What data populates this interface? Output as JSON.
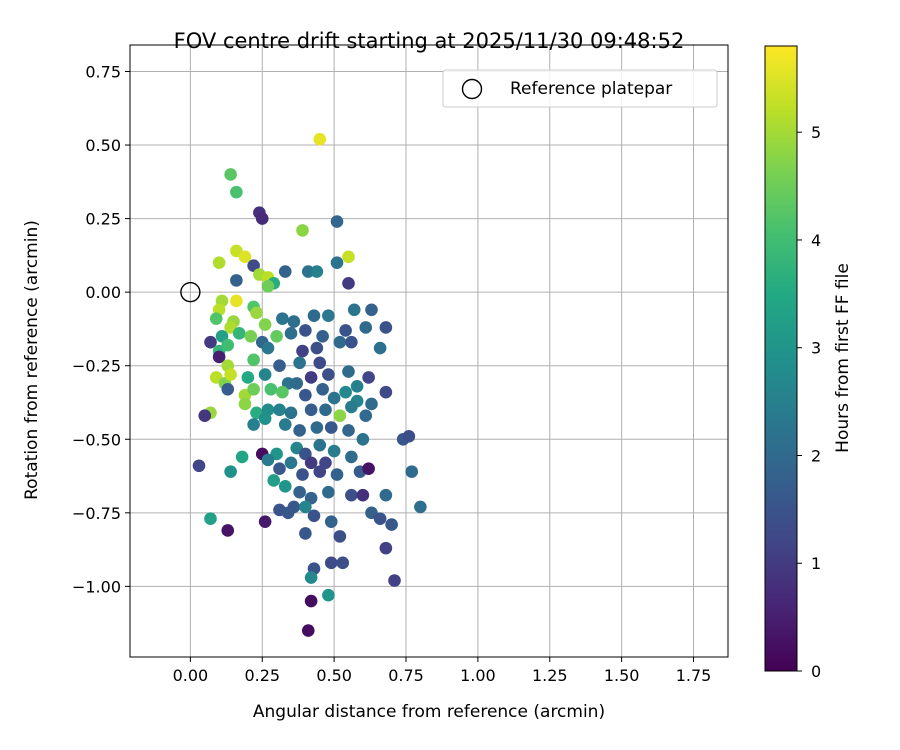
{
  "chart_data": {
    "type": "scatter",
    "title": "FOV centre drift starting at 2025/11/30 09:48:52",
    "xlabel": "Angular distance from reference (arcmin)",
    "ylabel": "Rotation from reference (arcmin)",
    "xlim": [
      -0.21,
      1.87
    ],
    "ylim": [
      -1.24,
      0.84
    ],
    "xticks": [
      0,
      0.25,
      0.5,
      0.75,
      1.0,
      1.25,
      1.5,
      1.75
    ],
    "xtick_labels": [
      "0.00",
      "0.25",
      "0.50",
      "0.75",
      "1.00",
      "1.25",
      "1.50",
      "1.75"
    ],
    "yticks": [
      -1.0,
      -0.75,
      -0.5,
      -0.25,
      0,
      0.25,
      0.5,
      0.75
    ],
    "ytick_labels": [
      "−1.00",
      "−0.75",
      "−0.50",
      "−0.25",
      "0.00",
      "0.25",
      "0.50",
      "0.75"
    ],
    "grid": true,
    "legend": {
      "position": "top-right",
      "entries": [
        "Reference platepar"
      ]
    },
    "reference_point": {
      "x": 0,
      "y": 0,
      "label": "Reference platepar"
    },
    "colorbar": {
      "label": "Hours from first FF file",
      "colormap": "viridis",
      "range": [
        0,
        5.8
      ],
      "ticks": [
        0,
        1,
        2,
        3,
        4,
        5
      ],
      "tick_labels": [
        "0",
        "1",
        "2",
        "3",
        "4",
        "5"
      ]
    },
    "points": [
      [
        0.45,
        0.52,
        5.6
      ],
      [
        0.14,
        0.4,
        4.3
      ],
      [
        0.16,
        0.34,
        4.1
      ],
      [
        0.24,
        0.27,
        0.8
      ],
      [
        0.25,
        0.25,
        0.7
      ],
      [
        0.39,
        0.21,
        4.8
      ],
      [
        0.51,
        0.24,
        1.9
      ],
      [
        0.16,
        0.14,
        5.3
      ],
      [
        0.19,
        0.12,
        5.5
      ],
      [
        0.1,
        0.1,
        5.1
      ],
      [
        0.55,
        0.12,
        5.3
      ],
      [
        0.22,
        0.09,
        1.3
      ],
      [
        0.51,
        0.1,
        2.2
      ],
      [
        0.33,
        0.07,
        1.8
      ],
      [
        0.41,
        0.07,
        2.2
      ],
      [
        0.44,
        0.07,
        2.5
      ],
      [
        0.24,
        0.06,
        5.0
      ],
      [
        0.27,
        0.05,
        5.2
      ],
      [
        0.29,
        0.03,
        3.6
      ],
      [
        0.16,
        0.04,
        1.8
      ],
      [
        0.27,
        0.02,
        4.5
      ],
      [
        0.55,
        0.03,
        1.0
      ],
      [
        0.11,
        -0.03,
        5.0
      ],
      [
        0.16,
        -0.03,
        5.6
      ],
      [
        0.1,
        -0.06,
        5.2
      ],
      [
        0.22,
        -0.05,
        4.2
      ],
      [
        0.23,
        -0.07,
        4.9
      ],
      [
        0.09,
        -0.09,
        4.2
      ],
      [
        0.15,
        -0.1,
        4.9
      ],
      [
        0.14,
        -0.12,
        5.1
      ],
      [
        0.26,
        -0.11,
        4.7
      ],
      [
        0.32,
        -0.09,
        2.2
      ],
      [
        0.36,
        -0.1,
        2.1
      ],
      [
        0.43,
        -0.08,
        2.0
      ],
      [
        0.48,
        -0.08,
        2.3
      ],
      [
        0.57,
        -0.06,
        2.2
      ],
      [
        0.63,
        -0.06,
        1.8
      ],
      [
        0.11,
        -0.15,
        3.3
      ],
      [
        0.17,
        -0.14,
        3.8
      ],
      [
        0.21,
        -0.15,
        4.6
      ],
      [
        0.3,
        -0.15,
        4.4
      ],
      [
        0.35,
        -0.14,
        2.1
      ],
      [
        0.4,
        -0.13,
        1.5
      ],
      [
        0.46,
        -0.15,
        1.8
      ],
      [
        0.54,
        -0.13,
        1.5
      ],
      [
        0.61,
        -0.12,
        2.0
      ],
      [
        0.68,
        -0.12,
        1.5
      ],
      [
        0.07,
        -0.17,
        1.0
      ],
      [
        0.1,
        -0.2,
        3.8
      ],
      [
        0.13,
        -0.18,
        4.0
      ],
      [
        0.25,
        -0.17,
        1.9
      ],
      [
        0.27,
        -0.19,
        2.3
      ],
      [
        0.39,
        -0.2,
        1.1
      ],
      [
        0.44,
        -0.19,
        1.4
      ],
      [
        0.52,
        -0.17,
        2.0
      ],
      [
        0.56,
        -0.17,
        1.5
      ],
      [
        0.66,
        -0.19,
        2.1
      ],
      [
        0.1,
        -0.22,
        0.5
      ],
      [
        0.13,
        -0.25,
        5.0
      ],
      [
        0.22,
        -0.23,
        4.2
      ],
      [
        0.31,
        -0.25,
        1.7
      ],
      [
        0.38,
        -0.24,
        2.2
      ],
      [
        0.45,
        -0.24,
        1.3
      ],
      [
        0.55,
        -0.27,
        2.0
      ],
      [
        0.62,
        -0.29,
        1.2
      ],
      [
        0.09,
        -0.29,
        5.2
      ],
      [
        0.12,
        -0.31,
        4.7
      ],
      [
        0.14,
        -0.28,
        5.3
      ],
      [
        0.2,
        -0.29,
        3.5
      ],
      [
        0.26,
        -0.28,
        2.6
      ],
      [
        0.34,
        -0.31,
        2.2
      ],
      [
        0.42,
        -0.29,
        1.0
      ],
      [
        0.48,
        -0.28,
        1.4
      ],
      [
        0.58,
        -0.32,
        2.5
      ],
      [
        0.13,
        -0.33,
        1.7
      ],
      [
        0.19,
        -0.35,
        5.0
      ],
      [
        0.22,
        -0.33,
        4.5
      ],
      [
        0.28,
        -0.33,
        4.1
      ],
      [
        0.32,
        -0.34,
        4.3
      ],
      [
        0.37,
        -0.31,
        2.0
      ],
      [
        0.4,
        -0.35,
        1.6
      ],
      [
        0.46,
        -0.33,
        1.8
      ],
      [
        0.5,
        -0.36,
        2.2
      ],
      [
        0.54,
        -0.34,
        2.7
      ],
      [
        0.58,
        -0.37,
        2.6
      ],
      [
        0.63,
        -0.38,
        2.0
      ],
      [
        0.68,
        -0.34,
        1.3
      ],
      [
        0.07,
        -0.41,
        4.9
      ],
      [
        0.05,
        -0.42,
        0.9
      ],
      [
        0.19,
        -0.38,
        4.8
      ],
      [
        0.23,
        -0.41,
        3.6
      ],
      [
        0.27,
        -0.4,
        2.8
      ],
      [
        0.31,
        -0.4,
        2.5
      ],
      [
        0.35,
        -0.41,
        2.2
      ],
      [
        0.42,
        -0.4,
        1.7
      ],
      [
        0.47,
        -0.4,
        2.0
      ],
      [
        0.52,
        -0.42,
        4.8
      ],
      [
        0.56,
        -0.39,
        2.4
      ],
      [
        0.61,
        -0.42,
        2.0
      ],
      [
        0.22,
        -0.45,
        2.5
      ],
      [
        0.26,
        -0.43,
        2.9
      ],
      [
        0.33,
        -0.45,
        2.4
      ],
      [
        0.38,
        -0.47,
        1.8
      ],
      [
        0.44,
        -0.46,
        2.0
      ],
      [
        0.49,
        -0.46,
        1.6
      ],
      [
        0.55,
        -0.47,
        1.9
      ],
      [
        0.6,
        -0.5,
        2.2
      ],
      [
        0.74,
        -0.5,
        1.6
      ],
      [
        0.76,
        -0.49,
        1.4
      ],
      [
        0.25,
        -0.55,
        0.2
      ],
      [
        0.3,
        -0.55,
        3.0
      ],
      [
        0.37,
        -0.53,
        2.6
      ],
      [
        0.4,
        -0.55,
        1.5
      ],
      [
        0.45,
        -0.52,
        2.2
      ],
      [
        0.5,
        -0.54,
        2.4
      ],
      [
        0.56,
        -0.56,
        2.0
      ],
      [
        0.18,
        -0.56,
        3.4
      ],
      [
        0.27,
        -0.57,
        2.4
      ],
      [
        0.35,
        -0.58,
        2.3
      ],
      [
        0.42,
        -0.58,
        1.0
      ],
      [
        0.47,
        -0.58,
        1.2
      ],
      [
        0.03,
        -0.59,
        1.2
      ],
      [
        0.14,
        -0.61,
        2.9
      ],
      [
        0.31,
        -0.6,
        1.6
      ],
      [
        0.39,
        -0.62,
        1.5
      ],
      [
        0.45,
        -0.61,
        1.2
      ],
      [
        0.51,
        -0.62,
        1.8
      ],
      [
        0.59,
        -0.61,
        1.7
      ],
      [
        0.62,
        -0.6,
        0.3
      ],
      [
        0.77,
        -0.61,
        2.0
      ],
      [
        0.29,
        -0.64,
        3.2
      ],
      [
        0.33,
        -0.66,
        3.0
      ],
      [
        0.38,
        -0.68,
        1.8
      ],
      [
        0.42,
        -0.7,
        1.8
      ],
      [
        0.48,
        -0.68,
        2.0
      ],
      [
        0.56,
        -0.69,
        1.4
      ],
      [
        0.6,
        -0.69,
        0.8
      ],
      [
        0.68,
        -0.69,
        2.0
      ],
      [
        0.36,
        -0.73,
        1.6
      ],
      [
        0.4,
        -0.73,
        2.6
      ],
      [
        0.31,
        -0.74,
        1.5
      ],
      [
        0.34,
        -0.75,
        1.6
      ],
      [
        0.43,
        -0.76,
        1.5
      ],
      [
        0.49,
        -0.78,
        1.8
      ],
      [
        0.63,
        -0.75,
        1.8
      ],
      [
        0.66,
        -0.77,
        1.5
      ],
      [
        0.7,
        -0.79,
        1.6
      ],
      [
        0.8,
        -0.73,
        2.1
      ],
      [
        0.07,
        -0.77,
        3.3
      ],
      [
        0.13,
        -0.81,
        0.3
      ],
      [
        0.26,
        -0.78,
        0.4
      ],
      [
        0.4,
        -0.82,
        1.6
      ],
      [
        0.52,
        -0.83,
        1.4
      ],
      [
        0.68,
        -0.87,
        1.1
      ],
      [
        0.49,
        -0.92,
        1.3
      ],
      [
        0.53,
        -0.92,
        1.4
      ],
      [
        0.43,
        -0.94,
        1.5
      ],
      [
        0.42,
        -0.97,
        2.7
      ],
      [
        0.71,
        -0.98,
        1.1
      ],
      [
        0.48,
        -1.03,
        3.0
      ],
      [
        0.42,
        -1.05,
        0.2
      ],
      [
        0.41,
        -1.15,
        0.2
      ]
    ]
  }
}
